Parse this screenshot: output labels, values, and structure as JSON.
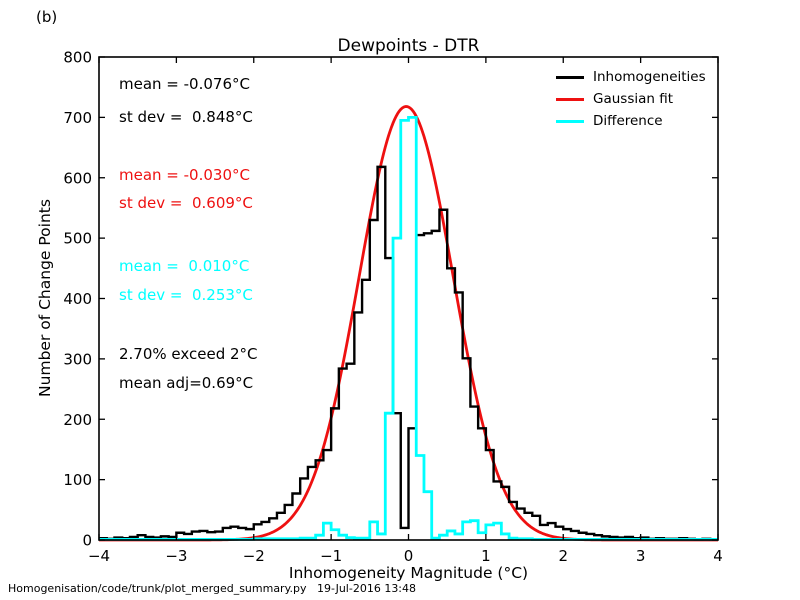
{
  "figure": {
    "panel_label": "(b)",
    "footer": "Homogenisation/code/trunk/plot_merged_summary.py   19-Jul-2016 13:48"
  },
  "chart_data": {
    "type": "bar",
    "subtype": "step-histograms-with-gaussian-fit",
    "title": "Dewpoints - DTR",
    "xlabel": "Inhomogeneity Magnitude (°C)",
    "ylabel": "Number of Change Points",
    "xlim": [
      -4,
      4
    ],
    "ylim": [
      0,
      800
    ],
    "xticks": [
      -4,
      -3,
      -2,
      -1,
      0,
      1,
      2,
      3,
      4
    ],
    "yticks": [
      0,
      100,
      200,
      300,
      400,
      500,
      600,
      700,
      800
    ],
    "grid": false,
    "legend_position": "upper right",
    "bins": {
      "start": -4.0,
      "width": 0.1
    },
    "series": [
      {
        "name": "Inhomogeneities",
        "type": "step-histogram",
        "color": "#000000",
        "values": [
          3,
          2,
          4,
          3,
          5,
          8,
          5,
          4,
          6,
          5,
          12,
          10,
          14,
          15,
          13,
          14,
          20,
          22,
          20,
          18,
          26,
          30,
          36,
          45,
          58,
          77,
          102,
          121,
          132,
          149,
          218,
          284,
          292,
          377,
          431,
          530,
          618,
          467,
          210,
          20,
          185,
          505,
          508,
          512,
          547,
          450,
          410,
          301,
          221,
          185,
          149,
          97,
          88,
          63,
          52,
          45,
          40,
          25,
          28,
          22,
          18,
          15,
          12,
          10,
          8,
          6,
          5,
          4,
          5,
          3,
          4,
          2,
          3,
          2,
          2,
          3,
          2,
          1,
          2,
          1
        ]
      },
      {
        "name": "Gaussian fit",
        "type": "gaussian-curve",
        "color": "#ee1111",
        "amplitude": 718,
        "mean": -0.03,
        "sigma": 0.609
      },
      {
        "name": "Difference",
        "type": "step-histogram",
        "color": "#00ffff",
        "values": [
          1,
          1,
          1,
          1,
          1,
          1,
          1,
          1,
          1,
          1,
          1,
          1,
          1,
          1,
          1,
          1,
          1,
          1,
          1,
          1,
          2,
          2,
          2,
          2,
          2,
          2,
          3,
          3,
          8,
          28,
          17,
          8,
          4,
          3,
          3,
          30,
          10,
          210,
          500,
          695,
          700,
          140,
          80,
          3,
          8,
          15,
          10,
          30,
          32,
          12,
          25,
          28,
          10,
          3,
          2,
          2,
          1,
          1,
          1,
          1,
          1,
          1,
          1,
          1,
          1,
          1,
          1,
          1,
          1,
          1,
          1,
          1,
          1,
          1,
          1,
          1,
          1,
          1,
          1,
          1
        ]
      }
    ],
    "legend": [
      {
        "label": "Inhomogeneities",
        "color": "#000000"
      },
      {
        "label": "Gaussian fit",
        "color": "#ee1111"
      },
      {
        "label": "Difference",
        "color": "#00ffff"
      }
    ],
    "annotations": [
      {
        "text": "mean = -0.076°C",
        "color": "#000000"
      },
      {
        "text": "st dev =  0.848°C",
        "color": "#000000"
      },
      {
        "text": "mean = -0.030°C",
        "color": "#ee1111"
      },
      {
        "text": "st dev =  0.609°C",
        "color": "#ee1111"
      },
      {
        "text": "mean =  0.010°C",
        "color": "#00ffff"
      },
      {
        "text": "st dev =  0.253°C",
        "color": "#00ffff"
      },
      {
        "text": "2.70% exceed 2°C",
        "color": "#000000"
      },
      {
        "text": "mean adj=0.69°C",
        "color": "#000000"
      }
    ]
  }
}
